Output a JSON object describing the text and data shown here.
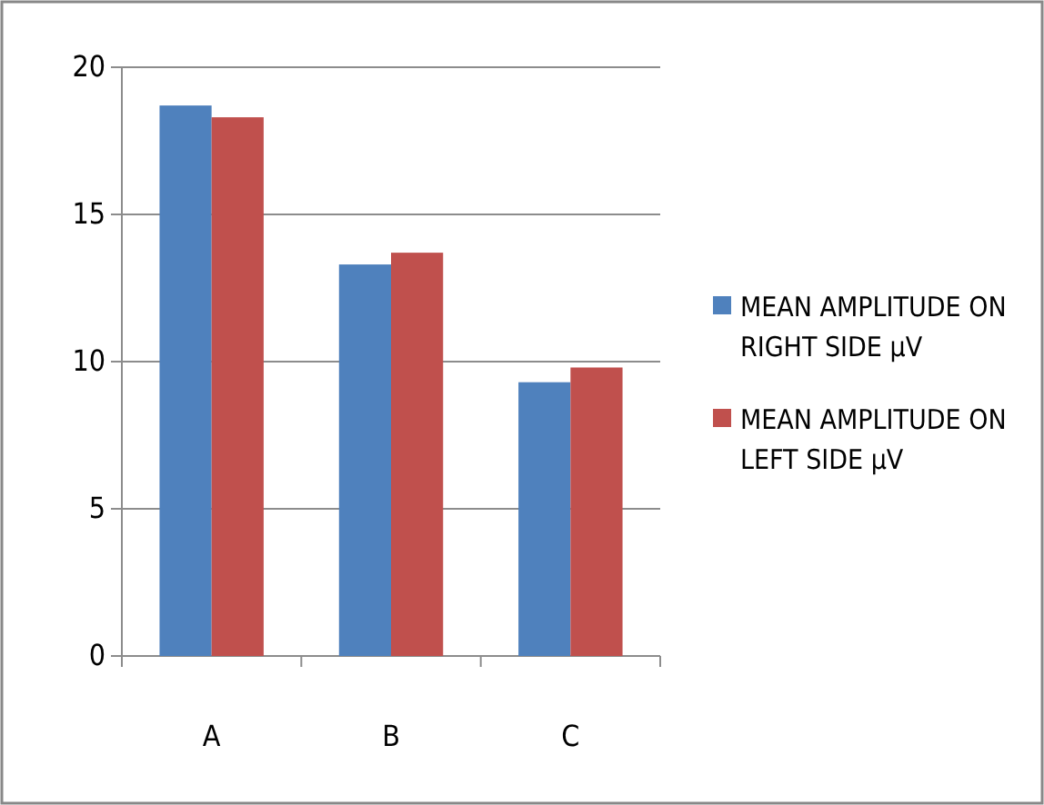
{
  "chart_data": {
    "type": "bar",
    "categories": [
      "A",
      "B",
      "C"
    ],
    "series": [
      {
        "name": "MEAN AMPLITUDE ON RIGHT SIDE µV",
        "color": "#4f81bd",
        "values": [
          18.7,
          13.3,
          9.3
        ]
      },
      {
        "name": "MEAN AMPLITUDE ON LEFT SIDE µV",
        "color": "#c0504d",
        "values": [
          18.3,
          13.7,
          9.8
        ]
      }
    ],
    "ylim": [
      0,
      20
    ],
    "yticks": [
      0,
      5,
      10,
      15,
      20
    ],
    "grid": "y",
    "legend": "right"
  }
}
